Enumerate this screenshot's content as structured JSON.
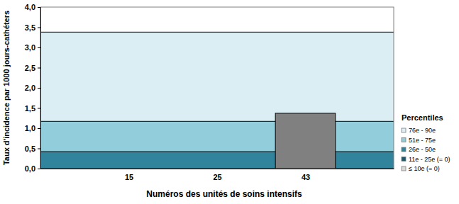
{
  "chart_data": {
    "type": "bar",
    "y_label": "Taux d'incidence par 1000 jours-cathéters",
    "x_label": "Numéros des unités de soins intensifs",
    "categories": [
      null,
      "15",
      "25",
      "43",
      null
    ],
    "values": [
      null,
      0,
      0,
      1.37,
      null
    ],
    "color": "#808080",
    "ylim": [
      0,
      4
    ],
    "yticks": [
      {
        "value": 0,
        "label": "0,0"
      },
      {
        "value": 0.5,
        "label": "0,5"
      },
      {
        "value": 1,
        "label": "1,0"
      },
      {
        "value": 1.5,
        "label": "1,5"
      },
      {
        "value": 2,
        "label": "2,0"
      },
      {
        "value": 2.5,
        "label": "2,5"
      },
      {
        "value": 3,
        "label": "3,0"
      },
      {
        "value": 3.5,
        "label": "3,5"
      },
      {
        "value": 4,
        "label": "4,0"
      }
    ],
    "legend": "right",
    "legend_title": "Percentiles",
    "bands": [
      {
        "name": "≤ 10e (= 0)",
        "color": "#d9d9d9",
        "lower": 0,
        "upper": 0
      },
      {
        "name": "11e - 25e (= 0)",
        "color": "#215968",
        "lower": 0,
        "upper": 0
      },
      {
        "name": "26e - 50e",
        "color": "#31849b",
        "lower": 0,
        "upper": 0.42
      },
      {
        "name": "51e - 75e",
        "color": "#92cddc",
        "lower": 0.42,
        "upper": 1.17
      },
      {
        "name": "76e - 90e",
        "color": "#dbeef4",
        "lower": 1.17,
        "upper": 3.38
      }
    ]
  }
}
